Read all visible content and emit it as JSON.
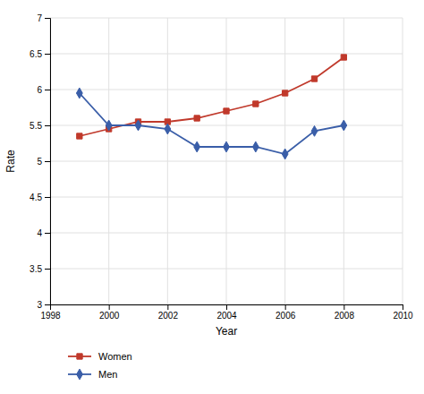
{
  "chart_data": {
    "type": "line",
    "xlabel": "Year",
    "ylabel": "Rate",
    "x": [
      1999,
      2000,
      2001,
      2002,
      2003,
      2004,
      2005,
      2006,
      2007,
      2008
    ],
    "series": [
      {
        "name": "Women",
        "color": "#c0392b",
        "marker": "square",
        "line_style": "solid",
        "values": [
          5.35,
          5.45,
          5.55,
          5.55,
          5.6,
          5.7,
          5.8,
          5.95,
          6.15,
          6.45
        ]
      },
      {
        "name": "Men",
        "color": "#3a5ea8",
        "marker": "diamond",
        "line_style": "solid",
        "values": [
          5.95,
          5.5,
          5.5,
          5.45,
          5.2,
          5.2,
          5.2,
          5.1,
          5.42,
          5.5
        ]
      }
    ],
    "xlim": [
      1998,
      2010
    ],
    "xticks": [
      1998,
      2000,
      2002,
      2004,
      2006,
      2008,
      2010
    ],
    "ylim": [
      3.0,
      7.0
    ],
    "yticks": [
      3.0,
      3.5,
      4.0,
      4.5,
      5.0,
      5.5,
      6.0,
      6.5,
      7.0
    ],
    "grid": true,
    "legend": "bottom-left"
  }
}
